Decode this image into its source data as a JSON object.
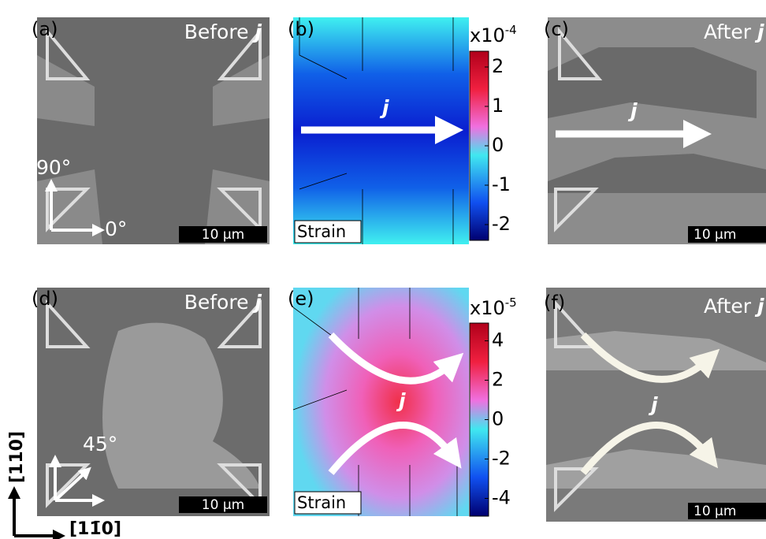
{
  "panels": {
    "a": {
      "label": "(a)",
      "title": "Before",
      "symbol": "j",
      "angle_vertical": "90°",
      "angle_horizontal": "0°",
      "scale_bar": "10 µm"
    },
    "b": {
      "label": "(b)",
      "current": "j",
      "quantity": "Strain",
      "colorbar": {
        "multiplier": "x10",
        "exponent": "-4",
        "range": [
          -2.4,
          2.4
        ],
        "ticks": [
          2,
          1,
          0,
          -1,
          -2
        ]
      }
    },
    "c": {
      "label": "(c)",
      "title": "After",
      "symbol": "j",
      "current": "j",
      "scale_bar": "10 µm"
    },
    "d": {
      "label": "(d)",
      "title": "Before",
      "symbol": "j",
      "angle": "45°",
      "scale_bar": "10 µm"
    },
    "e": {
      "label": "(e)",
      "current": "j",
      "quantity": "Strain",
      "colorbar": {
        "multiplier": "x10",
        "exponent": "-5",
        "range": [
          -4.9,
          4.9
        ],
        "ticks": [
          4,
          2,
          0,
          -2,
          -4
        ]
      }
    },
    "f": {
      "label": "(f)",
      "title": "After",
      "symbol": "j",
      "current": "j",
      "scale_bar": "10 µm"
    }
  },
  "crystal_axes": {
    "vertical": "[110]",
    "horizontal": "[11̄0]"
  }
}
